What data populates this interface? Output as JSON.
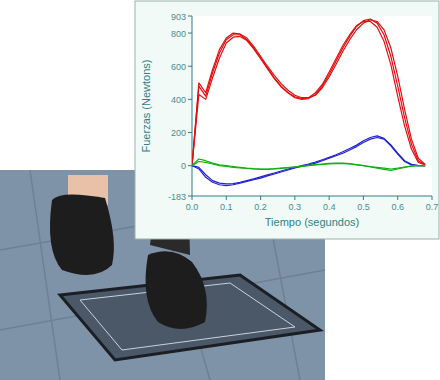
{
  "chart_data": {
    "type": "line",
    "x_label": "Tiempo (segundos)",
    "y_label": "Fuerzas (Newtons)",
    "x": [
      0,
      0.02,
      0.04,
      0.06,
      0.08,
      0.1,
      0.12,
      0.14,
      0.16,
      0.18,
      0.2,
      0.22,
      0.24,
      0.26,
      0.28,
      0.3,
      0.32,
      0.34,
      0.36,
      0.38,
      0.4,
      0.42,
      0.44,
      0.46,
      0.48,
      0.5,
      0.52,
      0.54,
      0.56,
      0.58,
      0.6,
      0.62,
      0.64,
      0.66,
      0.68
    ],
    "series": [
      {
        "color": "#e01010",
        "values": [
          0,
          480,
          420,
          560,
          680,
          760,
          790,
          790,
          760,
          710,
          650,
          590,
          530,
          480,
          440,
          410,
          400,
          405,
          430,
          480,
          550,
          630,
          710,
          780,
          840,
          875,
          885,
          860,
          790,
          660,
          480,
          290,
          130,
          30,
          5
        ]
      },
      {
        "color": "#e01010",
        "values": [
          0,
          430,
          400,
          530,
          650,
          740,
          775,
          780,
          755,
          705,
          645,
          585,
          525,
          475,
          440,
          415,
          405,
          410,
          440,
          490,
          565,
          645,
          725,
          790,
          845,
          870,
          870,
          835,
          750,
          610,
          420,
          240,
          100,
          20,
          5
        ]
      },
      {
        "color": "#e01010",
        "values": [
          0,
          500,
          440,
          580,
          700,
          770,
          800,
          795,
          770,
          720,
          660,
          600,
          545,
          495,
          455,
          425,
          410,
          410,
          425,
          470,
          535,
          610,
          690,
          760,
          820,
          860,
          880,
          870,
          820,
          710,
          540,
          340,
          160,
          45,
          8
        ]
      },
      {
        "color": "#2020d0",
        "values": [
          0,
          -20,
          -70,
          -100,
          -115,
          -120,
          -115,
          -105,
          -95,
          -85,
          -75,
          -62,
          -50,
          -38,
          -26,
          -14,
          -4,
          5,
          15,
          30,
          45,
          60,
          75,
          95,
          115,
          140,
          160,
          170,
          160,
          120,
          70,
          25,
          5,
          0,
          0
        ]
      },
      {
        "color": "#2020d0",
        "values": [
          0,
          -10,
          -55,
          -90,
          -105,
          -110,
          -108,
          -100,
          -90,
          -80,
          -68,
          -56,
          -44,
          -32,
          -20,
          -10,
          0,
          10,
          22,
          36,
          50,
          66,
          84,
          104,
          124,
          150,
          170,
          180,
          165,
          125,
          75,
          30,
          8,
          0,
          0
        ]
      },
      {
        "color": "#10b010",
        "values": [
          0,
          40,
          30,
          15,
          5,
          0,
          -5,
          -10,
          -15,
          -18,
          -20,
          -20,
          -18,
          -15,
          -12,
          -8,
          -4,
          0,
          4,
          8,
          10,
          12,
          12,
          10,
          5,
          0,
          -5,
          -10,
          -15,
          -20,
          -15,
          -8,
          -2,
          0,
          0
        ]
      },
      {
        "color": "#10b010",
        "values": [
          0,
          25,
          20,
          10,
          0,
          -5,
          -10,
          -14,
          -17,
          -20,
          -22,
          -22,
          -20,
          -16,
          -12,
          -8,
          -3,
          2,
          6,
          10,
          14,
          16,
          15,
          12,
          6,
          0,
          -8,
          -15,
          -22,
          -28,
          -20,
          -10,
          -3,
          0,
          0
        ]
      }
    ],
    "xlim": [
      0,
      0.7
    ],
    "xticks": [
      {
        "value": 0,
        "label": "0.0"
      },
      0.1,
      0.2,
      0.3,
      0.4,
      0.5,
      0.6,
      0.7
    ],
    "ylim": [
      -183,
      903
    ],
    "yticks": [
      -183,
      0,
      200,
      400,
      600,
      800,
      903
    ],
    "grid": false
  }
}
